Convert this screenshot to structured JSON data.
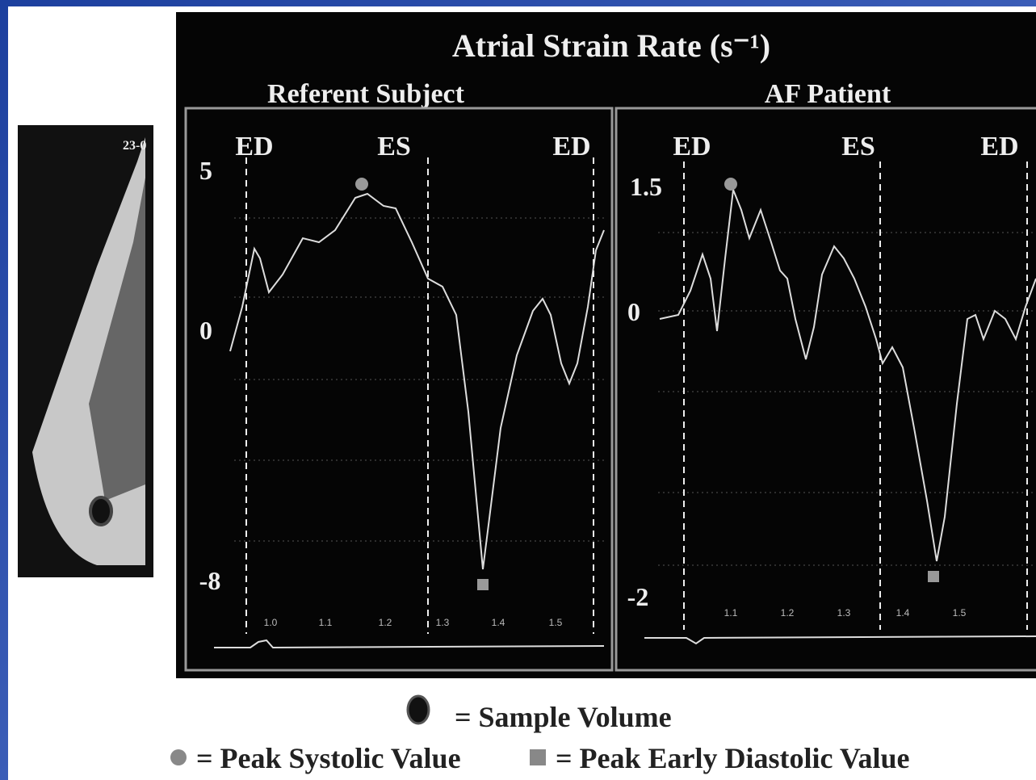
{
  "title": "Atrial Strain Rate (s⁻¹)",
  "image_label": "23-0",
  "panels": [
    {
      "subtitle": "Referent Subject",
      "markers": [
        "ED",
        "ES",
        "ED"
      ],
      "y_labels": [
        "5",
        "0",
        "-8"
      ],
      "x_labels": [
        "1.0",
        "1.1",
        "1.2",
        "1.3",
        "1.4",
        "1.5"
      ]
    },
    {
      "subtitle": "AF Patient",
      "markers": [
        "ED",
        "ES",
        "ED"
      ],
      "y_labels": [
        "1.5",
        "0",
        "-2"
      ],
      "x_labels": [
        "1.1",
        "1.2",
        "1.3",
        "1.4",
        "1.5"
      ]
    }
  ],
  "legend": {
    "sample_volume": "= Sample Volume",
    "peak_systolic": "= Peak Systolic Value",
    "peak_early_diastolic": "= Peak Early Diastolic Value"
  }
}
